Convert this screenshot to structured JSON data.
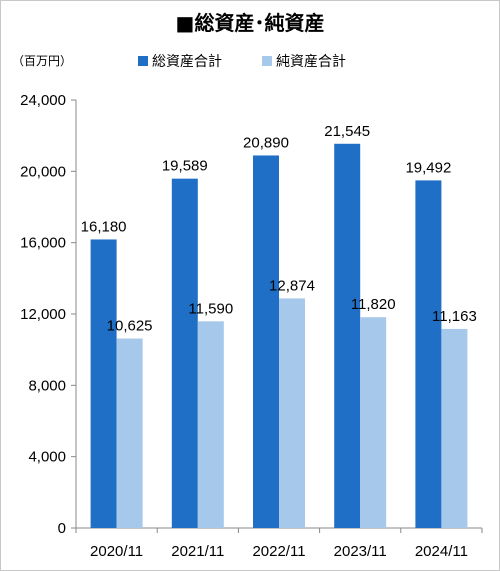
{
  "chart_data": {
    "type": "bar",
    "title": "■総資産･純資産",
    "unit_label": "（百万円）",
    "categories": [
      "2020/11",
      "2021/11",
      "2022/11",
      "2023/11",
      "2024/11"
    ],
    "series": [
      {
        "name": "総資産合計",
        "color": "#1f6fc6",
        "values": [
          16180,
          19589,
          20890,
          21545,
          19492
        ]
      },
      {
        "name": "純資産合計",
        "color": "#a6c8ea",
        "values": [
          10625,
          11590,
          12874,
          11820,
          11163
        ]
      }
    ],
    "data_labels": [
      [
        "16,180",
        "19,589",
        "20,890",
        "21,545",
        "19,492"
      ],
      [
        "10,625",
        "11,590",
        "12,874",
        "11,820",
        "11,163"
      ]
    ],
    "yticks": [
      "0",
      "4,000",
      "8,000",
      "12,000",
      "16,000",
      "20,000",
      "24,000"
    ],
    "ylim": [
      0,
      24000
    ],
    "legend_position": "top",
    "grid": false
  }
}
